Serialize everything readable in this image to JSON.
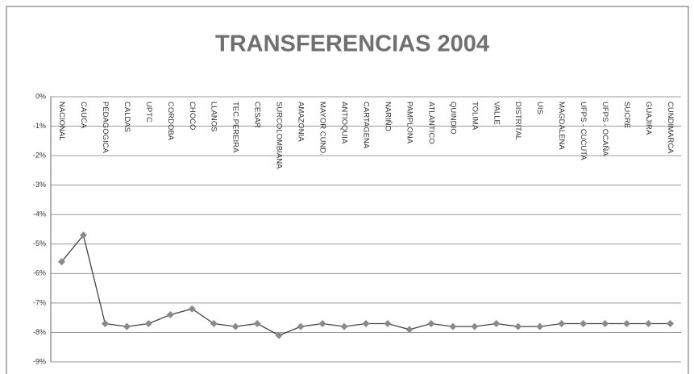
{
  "chart_data": {
    "type": "line",
    "title": "TRANSFERENCIAS 2004",
    "categories": [
      "NACIONAL",
      "CAUCA",
      "PEDAGOGICA",
      "CALDAS",
      "UPTC",
      "CORDOBA",
      "CHOCO",
      "LLANOS",
      "TEC.PEREIRA",
      "CESAR",
      "SURCOLOMBIANA",
      "AMAZONIA",
      "MAYOR CUND.",
      "ANTIOQUIA",
      "CARTAGENA",
      "NARIÑO",
      "PAMPLONA",
      "ATLANTICO",
      "QUINDIO",
      "TOLIMA",
      "VALLE",
      "DISTRITAL",
      "UIS",
      "MAGDALENA",
      "UFPS - CUCUTA",
      "UFPS - OCAÑA",
      "SUCRE",
      "GUAJIRA",
      "CUNDIMARCA"
    ],
    "values": [
      -5.6,
      -4.7,
      -7.7,
      -7.8,
      -7.7,
      -7.4,
      -7.2,
      -7.7,
      -7.8,
      -7.7,
      -8.1,
      -7.8,
      -7.7,
      -7.8,
      -7.7,
      -7.7,
      -7.9,
      -7.7,
      -7.8,
      -7.8,
      -7.7,
      -7.8,
      -7.8,
      -7.7,
      -7.7,
      -7.7,
      -7.7,
      -7.7,
      -7.7
    ],
    "color": "#444",
    "marker_color": "#8a8a8a",
    "ylim": [
      -9,
      0
    ],
    "yticks": [
      {
        "value": 0,
        "label": "0%"
      },
      {
        "value": -1,
        "label": "-1%"
      },
      {
        "value": -2,
        "label": "-2%"
      },
      {
        "value": -3,
        "label": "-3%"
      },
      {
        "value": -4,
        "label": "-4%"
      },
      {
        "value": -5,
        "label": "-5%"
      },
      {
        "value": -6,
        "label": "-6%"
      },
      {
        "value": -7,
        "label": "-7%"
      },
      {
        "value": -8,
        "label": "-8%"
      },
      {
        "value": -9,
        "label": "-9%"
      }
    ],
    "grid": true
  }
}
